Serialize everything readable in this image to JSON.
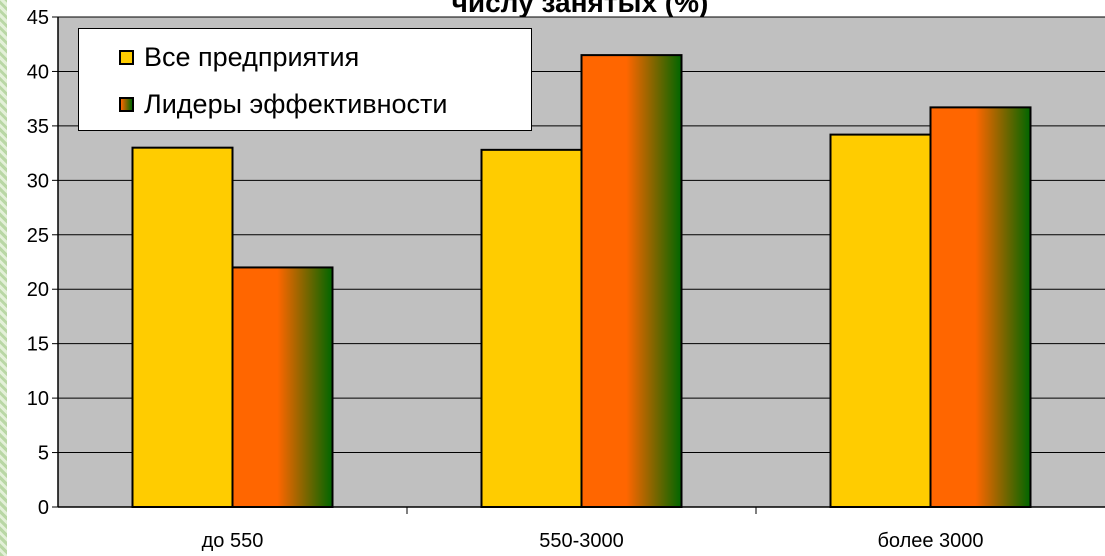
{
  "chart_data": {
    "type": "bar",
    "title": "числу занятых (%)",
    "categories": [
      "до 550",
      "550-3000",
      "более 3000"
    ],
    "series": [
      {
        "name": "Все предприятия",
        "values": [
          33,
          32.8,
          34.2
        ],
        "color": "#ffcc00"
      },
      {
        "name": "Лидеры эффективности",
        "values": [
          22,
          41.5,
          36.7
        ],
        "colors": [
          "#ff6600",
          "#ff6600",
          "#006600"
        ]
      }
    ],
    "ylim": [
      0,
      45
    ],
    "yticks": [
      0,
      5,
      10,
      15,
      20,
      25,
      30,
      35,
      40,
      45
    ],
    "xlabel": "",
    "ylabel": "",
    "grid": true,
    "legend": "top-left",
    "plot_background": "#c0c0c0"
  }
}
